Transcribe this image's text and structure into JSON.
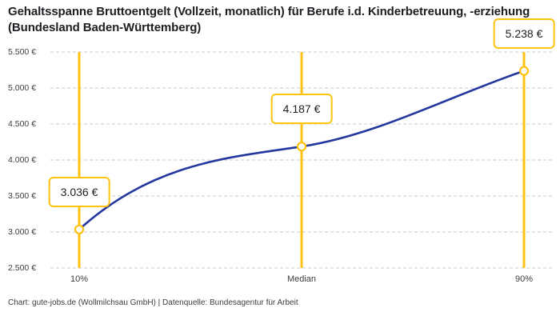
{
  "title": "Gehaltsspanne Bruttoentgelt (Vollzeit, monatlich) für Berufe i.d. Kinderbetreuung, -erziehung (Bundesland Baden-Württemberg)",
  "attribution": "Chart: gute-jobs.de (Wollmilchsau GmbH) | Datenquelle: Bundesagentur für Arbeit",
  "chart_data": {
    "type": "line",
    "title": "Gehaltsspanne Bruttoentgelt (Vollzeit, monatlich) für Berufe i.d. Kinderbetreuung, -erziehung (Bundesland Baden-Württemberg)",
    "categories": [
      "10%",
      "Median",
      "90%"
    ],
    "values": [
      3036,
      4187,
      5238
    ],
    "point_labels": [
      "3.036 €",
      "4.187 €",
      "5.238 €"
    ],
    "ylim": [
      2500,
      5500
    ],
    "ytick_step": 500,
    "ytick_labels": [
      "5.500 €",
      "5.000 €",
      "4.500 €",
      "4.000 €",
      "3.500 €",
      "3.000 €",
      "2.500 €"
    ],
    "xlabel": "",
    "ylabel": "",
    "grid": "horizontal-dashed",
    "legend": "none",
    "colors": {
      "line": "#23379F",
      "accent": "#FFC20E",
      "grid": "#CBCBCB",
      "text": "#1C1E21",
      "axis_text": "#3C3C3C"
    }
  }
}
